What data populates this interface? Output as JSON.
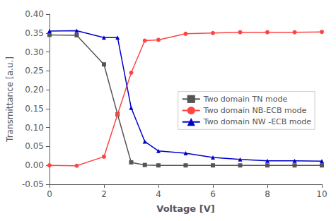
{
  "chart_data": {
    "type": "line",
    "xlabel": "Voltage [V]",
    "ylabel": "Transmittance [a.u.]",
    "x": [
      0,
      1,
      2,
      2.5,
      3,
      3.5,
      4,
      5,
      6,
      7,
      8,
      9,
      10
    ],
    "series": [
      {
        "name": "Two domain TN mode",
        "color": "#555555",
        "marker": "square",
        "values": [
          0.345,
          0.344,
          0.267,
          0.135,
          0.008,
          0.001,
          0.0,
          0.0,
          0.0,
          0.0,
          0.0,
          0.0,
          0.0
        ]
      },
      {
        "name": "Two domain NB-ECB mode",
        "color": "#ff4444",
        "marker": "circle",
        "values": [
          0.0,
          -0.001,
          0.023,
          0.135,
          0.245,
          0.33,
          0.332,
          0.348,
          0.35,
          0.352,
          0.352,
          0.352,
          0.353
        ]
      },
      {
        "name": "Two domain NW -ECB mode",
        "color": "#0000cc",
        "marker": "triangle",
        "values": [
          0.355,
          0.356,
          0.338,
          0.338,
          0.152,
          0.063,
          0.038,
          0.032,
          0.021,
          0.016,
          0.012,
          0.012,
          0.011
        ]
      }
    ],
    "xlim": [
      0,
      10
    ],
    "xticks": [
      0,
      2,
      4,
      6,
      8,
      10
    ],
    "ylim": [
      -0.05,
      0.4
    ],
    "yticks": [
      -0.05,
      {
        "value": 0,
        "label": "0.00"
      },
      0.05,
      {
        "value": 0.1,
        "label": "0.10"
      },
      0.15,
      {
        "value": 0.2,
        "label": "0.20"
      },
      0.25,
      {
        "value": 0.3,
        "label": "0.30"
      },
      0.35,
      {
        "value": 0.4,
        "label": "0.40"
      }
    ],
    "legend": "center right",
    "grid": false
  }
}
